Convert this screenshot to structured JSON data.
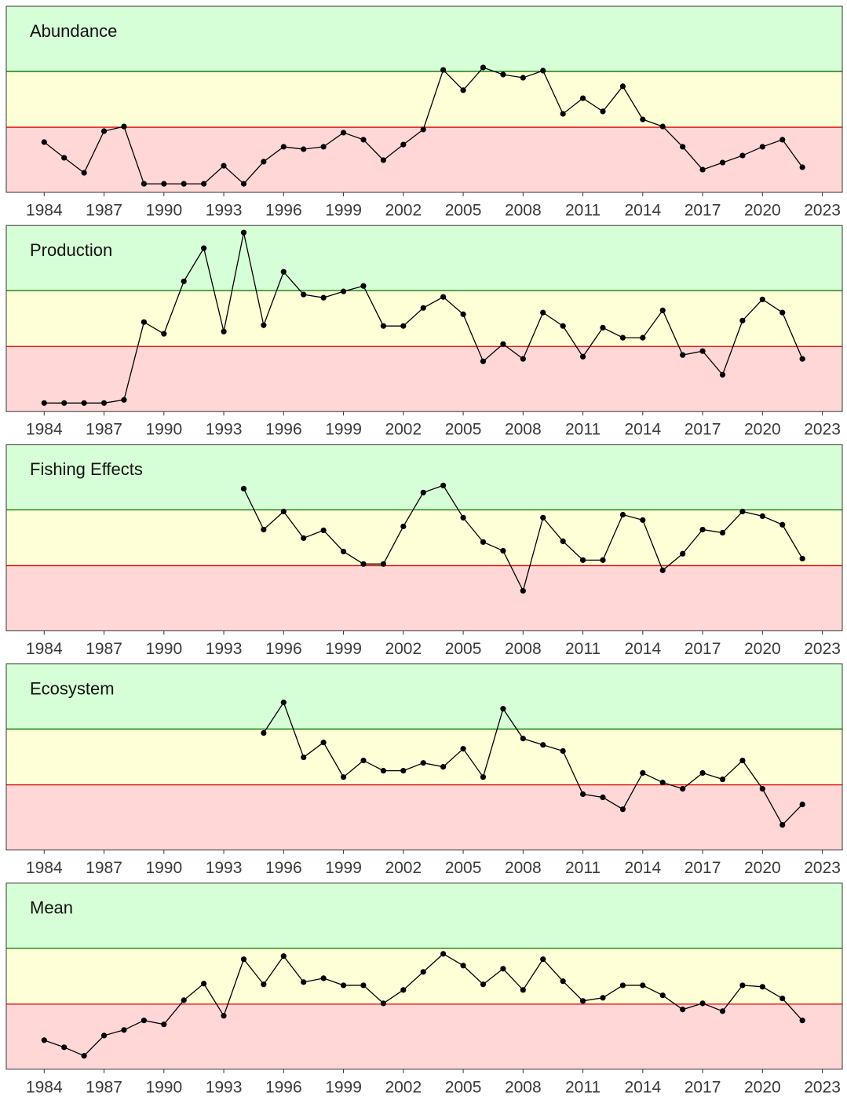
{
  "chart_data": [
    {
      "type": "line",
      "title": "Abundance",
      "x": [
        1984,
        1985,
        1986,
        1987,
        1988,
        1989,
        1990,
        1991,
        1992,
        1993,
        1994,
        1995,
        1996,
        1997,
        1998,
        1999,
        2000,
        2001,
        2002,
        2003,
        2004,
        2005,
        2006,
        2007,
        2008,
        2009,
        2010,
        2011,
        2012,
        2013,
        2014,
        2015,
        2016,
        2017,
        2018,
        2019,
        2020,
        2021,
        2022
      ],
      "series": [
        {
          "color": "#000000",
          "values": [
            27,
            18.6,
            10.5,
            32.9,
            35.4,
            4.6,
            4.6,
            4.6,
            4.6,
            14.3,
            4.6,
            16.5,
            24.5,
            23.2,
            24.5,
            32.1,
            28.3,
            17.3,
            25.7,
            33.8,
            65.8,
            54.9,
            67.1,
            63.3,
            61.6,
            65.4,
            42.2,
            50.6,
            43.5,
            57,
            39.2,
            35.4,
            24.5,
            12.2,
            16,
            19.8,
            24.5,
            28.3,
            13.5
          ]
        }
      ],
      "xlim": [
        1982.1,
        2024
      ],
      "xticks": [
        1984,
        1987,
        1990,
        1993,
        1996,
        1999,
        2002,
        2005,
        2008,
        2011,
        2014,
        2017,
        2020,
        2023
      ],
      "ylim": [
        0,
        100
      ],
      "thresholds": [
        35,
        65
      ],
      "threshold_colors": [
        "#e00000",
        "#006f00"
      ],
      "band_colors": [
        "#ffd7d7",
        "#ffffd7",
        "#d7ffd7"
      ]
    },
    {
      "type": "line",
      "title": "Production",
      "x": [
        1984,
        1985,
        1986,
        1987,
        1988,
        1989,
        1990,
        1991,
        1992,
        1993,
        1994,
        1995,
        1996,
        1997,
        1998,
        1999,
        2000,
        2001,
        2002,
        2003,
        2004,
        2005,
        2006,
        2007,
        2008,
        2009,
        2010,
        2011,
        2012,
        2013,
        2014,
        2015,
        2016,
        2017,
        2018,
        2019,
        2020,
        2021,
        2022
      ],
      "series": [
        {
          "color": "#000000",
          "values": [
            4.6,
            4.6,
            4.6,
            4.6,
            6.3,
            48.1,
            41.8,
            70,
            87.8,
            43,
            96.2,
            46.4,
            75.1,
            62.9,
            61.2,
            64.6,
            67.5,
            46,
            46,
            55.7,
            61.6,
            52.3,
            27,
            36.3,
            28.3,
            53.2,
            46,
            29.5,
            45.1,
            39.7,
            39.7,
            54.4,
            30.4,
            32.5,
            19.8,
            48.9,
            60.3,
            53.2,
            28.3
          ]
        }
      ],
      "xlim": [
        1982.1,
        2024
      ],
      "xticks": [
        1984,
        1987,
        1990,
        1993,
        1996,
        1999,
        2002,
        2005,
        2008,
        2011,
        2014,
        2017,
        2020,
        2023
      ],
      "ylim": [
        0,
        100
      ],
      "thresholds": [
        35,
        65
      ],
      "threshold_colors": [
        "#e00000",
        "#006f00"
      ],
      "band_colors": [
        "#ffd7d7",
        "#ffffd7",
        "#d7ffd7"
      ]
    },
    {
      "type": "line",
      "title": "Fishing Effects",
      "x": [
        1984,
        1985,
        1986,
        1987,
        1988,
        1989,
        1990,
        1991,
        1992,
        1993,
        1994,
        1995,
        1996,
        1997,
        1998,
        1999,
        2000,
        2001,
        2002,
        2003,
        2004,
        2005,
        2006,
        2007,
        2008,
        2009,
        2010,
        2011,
        2012,
        2013,
        2014,
        2015,
        2016,
        2017,
        2018,
        2019,
        2020,
        2021,
        2022
      ],
      "series": [
        {
          "color": "#000000",
          "values": [
            null,
            null,
            null,
            null,
            null,
            null,
            null,
            null,
            null,
            null,
            76.4,
            54.4,
            64.1,
            49.8,
            54,
            42.6,
            35.9,
            35.9,
            56.1,
            74.3,
            78.1,
            60.8,
            47.7,
            43,
            21.5,
            60.8,
            48.1,
            38,
            38,
            62.4,
            59.5,
            32.5,
            41.4,
            54.4,
            52.7,
            64.1,
            61.6,
            57,
            38.8
          ]
        }
      ],
      "xlim": [
        1982.1,
        2024
      ],
      "xticks": [
        1984,
        1987,
        1990,
        1993,
        1996,
        1999,
        2002,
        2005,
        2008,
        2011,
        2014,
        2017,
        2020,
        2023
      ],
      "ylim": [
        0,
        100
      ],
      "thresholds": [
        35,
        65
      ],
      "threshold_colors": [
        "#e00000",
        "#006f00"
      ],
      "band_colors": [
        "#ffd7d7",
        "#ffffd7",
        "#d7ffd7"
      ]
    },
    {
      "type": "line",
      "title": "Ecosystem",
      "x": [
        1984,
        1985,
        1986,
        1987,
        1988,
        1989,
        1990,
        1991,
        1992,
        1993,
        1994,
        1995,
        1996,
        1997,
        1998,
        1999,
        2000,
        2001,
        2002,
        2003,
        2004,
        2005,
        2006,
        2007,
        2008,
        2009,
        2010,
        2011,
        2012,
        2013,
        2014,
        2015,
        2016,
        2017,
        2018,
        2019,
        2020,
        2021,
        2022
      ],
      "series": [
        {
          "color": "#000000",
          "values": [
            null,
            null,
            null,
            null,
            null,
            null,
            null,
            null,
            null,
            null,
            null,
            62.9,
            79.3,
            49.8,
            57.8,
            39.2,
            48.1,
            42.6,
            42.6,
            46.8,
            44.7,
            54.4,
            39.2,
            75.9,
            59.9,
            56.5,
            53.2,
            30,
            28.3,
            21.9,
            41.4,
            36.3,
            32.9,
            41.4,
            38,
            48.1,
            32.9,
            13.5,
            24.5
          ]
        }
      ],
      "xlim": [
        1982.1,
        2024
      ],
      "xticks": [
        1984,
        1987,
        1990,
        1993,
        1996,
        1999,
        2002,
        2005,
        2008,
        2011,
        2014,
        2017,
        2020,
        2023
      ],
      "ylim": [
        0,
        100
      ],
      "thresholds": [
        35,
        65
      ],
      "threshold_colors": [
        "#e00000",
        "#006f00"
      ],
      "band_colors": [
        "#ffd7d7",
        "#ffffd7",
        "#d7ffd7"
      ]
    },
    {
      "type": "line",
      "title": "Mean",
      "x": [
        1984,
        1985,
        1986,
        1987,
        1988,
        1989,
        1990,
        1991,
        1992,
        1993,
        1994,
        1995,
        1996,
        1997,
        1998,
        1999,
        2000,
        2001,
        2002,
        2003,
        2004,
        2005,
        2006,
        2007,
        2008,
        2009,
        2010,
        2011,
        2012,
        2013,
        2014,
        2015,
        2016,
        2017,
        2018,
        2019,
        2020,
        2021,
        2022
      ],
      "series": [
        {
          "color": "#000000",
          "values": [
            15.6,
            11.8,
            7.2,
            18.1,
            21.1,
            26.2,
            24.1,
            37.1,
            46,
            28.7,
            59.1,
            45.6,
            60.8,
            46.8,
            48.9,
            45.1,
            45.1,
            35.4,
            42.6,
            52.3,
            62,
            55.7,
            45.6,
            54,
            42.6,
            59.1,
            47.3,
            36.7,
            38.4,
            45.1,
            45.1,
            39.7,
            32.1,
            35.4,
            31.2,
            45.1,
            44.3,
            38,
            26.2
          ]
        }
      ],
      "xlim": [
        1982.1,
        2024
      ],
      "xticks": [
        1984,
        1987,
        1990,
        1993,
        1996,
        1999,
        2002,
        2005,
        2008,
        2011,
        2014,
        2017,
        2020,
        2023
      ],
      "ylim": [
        0,
        100
      ],
      "thresholds": [
        35,
        65
      ],
      "threshold_colors": [
        "#e00000",
        "#006f00"
      ],
      "band_colors": [
        "#ffd7d7",
        "#ffffd7",
        "#d7ffd7"
      ]
    }
  ]
}
